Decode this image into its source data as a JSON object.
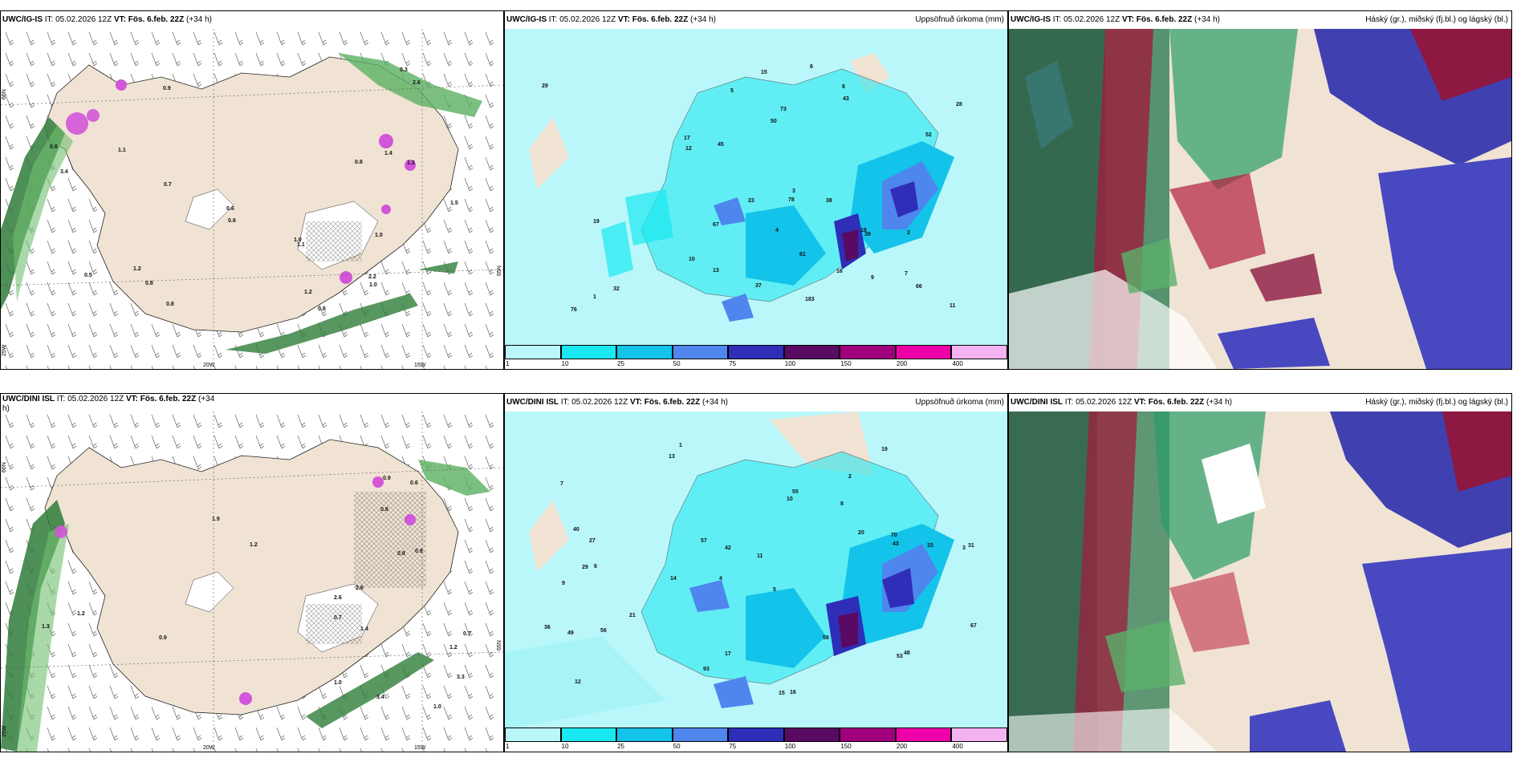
{
  "panels": {
    "tl": {
      "model": "UWC/IG-IS",
      "it": "IT: 05.02.2026 12Z",
      "vt": "VT: Fös. 6.feb. 22Z",
      "lead": "(+34 h)",
      "values": [
        "0.8",
        "0.9",
        "1.2",
        "1.1",
        "1.4",
        "1.2",
        "1.5",
        "0.7",
        "0.8",
        "0.8",
        "0.5",
        "0.6",
        "0.6",
        "1.0",
        "0.8",
        "0.3",
        "3.4",
        "2.6",
        "1.0",
        "1.3",
        "2.2",
        "1.1",
        "0.8",
        "1.0"
      ],
      "axes": {
        "lat": "66N",
        "lon1": "20W",
        "lon2": "15W",
        "left": "25W",
        "right": "65N"
      }
    },
    "tm": {
      "model": "UWC/IG-IS",
      "it": "IT: 05.02.2026 12Z",
      "vt": "VT: Fös. 6.feb. 22Z",
      "lead": "(+34 h)",
      "right": "Uppsöfnuð úrkoma (mm)",
      "values": [
        "1",
        "2",
        "3",
        "4",
        "5",
        "6",
        "7",
        "8",
        "9",
        "10",
        "11",
        "12",
        "13",
        "15",
        "16",
        "17",
        "18",
        "19",
        "23",
        "28",
        "29",
        "32",
        "37",
        "38",
        "39",
        "43",
        "45",
        "50",
        "52",
        "61",
        "66",
        "67",
        "73",
        "76",
        "78",
        "183"
      ]
    },
    "tr": {
      "model": "UWC/IG-IS",
      "it": "IT: 05.02.2026 12Z",
      "vt": "VT: Fös. 6.feb. 22Z",
      "lead": "(+34 h)",
      "right": "Háský (gr.), miðský (fj.bl.) og lágský (bl.)"
    },
    "bl": {
      "model": "UWC/DINI ISL",
      "it": "IT: 05.02.2026 12Z",
      "vt": "VT: Fös. 6.feb. 22Z",
      "lead": "(+34",
      "lead2": "h)",
      "values": [
        "0.7",
        "0.7",
        "0.9",
        "1.2",
        "1.0",
        "0.8",
        "0.9",
        "1.2",
        "3.3",
        "3.4",
        "2.6",
        "2.6",
        "1.3",
        "1.4",
        "0.9",
        "1.0",
        "0.6",
        "1.2",
        "0.9",
        "1.9"
      ],
      "axes": {
        "lat": "66N",
        "lon1": "20W",
        "lon2": "15W",
        "left": "25W",
        "right": "65N"
      }
    },
    "bm": {
      "model": "UWC/DINI ISL",
      "it": "IT: 05.02.2026 12Z",
      "vt": "VT: Fös. 6.feb. 22Z",
      "lead": "(+34 h)",
      "right": "Uppsöfnuð úrkoma (mm)",
      "values": [
        "1",
        "2",
        "3",
        "4",
        "5",
        "6",
        "7",
        "8",
        "9",
        "10",
        "11",
        "12",
        "13",
        "14",
        "15",
        "16",
        "17",
        "19",
        "20",
        "21",
        "27",
        "29",
        "31",
        "33",
        "36",
        "40",
        "42",
        "43",
        "48",
        "49",
        "53",
        "55",
        "56",
        "57",
        "58",
        "67",
        "70",
        "93"
      ]
    },
    "br": {
      "model": "UWC/DINI ISL",
      "it": "IT: 05.02.2026 12Z",
      "vt": "VT: Fös. 6.feb. 22Z",
      "lead": "(+34 h)",
      "right": "Háský (gr.), miðský (fj.bl.) og lágský (bl.)"
    }
  },
  "colorbar": {
    "ticks": [
      "1",
      "10",
      "25",
      "50",
      "75",
      "100",
      "150",
      "200",
      "400"
    ],
    "colors": [
      "#b9f7fb",
      "#19e8f0",
      "#13c3ea",
      "#4f86ee",
      "#2e2eb8",
      "#590a62",
      "#a0007e",
      "#ee00a8",
      "#f3b3f0"
    ]
  },
  "colors": {
    "land": "#f0e3d4",
    "precipLight": "#a6f4f6",
    "sea": "#ffffff",
    "green": "#38a050",
    "magenta": "#d355d9"
  }
}
